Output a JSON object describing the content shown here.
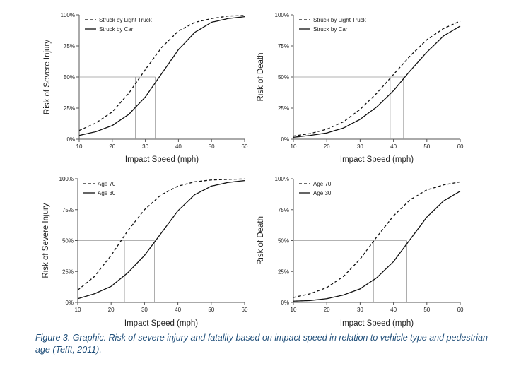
{
  "figure": {
    "caption": "Figure 3. Graphic. Risk of severe injury and fatality based on impact speed in relation to vehicle type and pedestrian age (Tefft, 2011)."
  },
  "chart_data": [
    {
      "type": "line",
      "title": "",
      "xlabel": "Impact Speed (mph)",
      "ylabel": "Risk of Severe Injury",
      "xlim": [
        10,
        60
      ],
      "ylim": [
        0,
        100
      ],
      "xticks": [
        "10",
        "20",
        "30",
        "40",
        "50",
        "60"
      ],
      "yticks": [
        "0%",
        "25%",
        "50%",
        "75%",
        "100%"
      ],
      "legend_position": "top-left",
      "grid": false,
      "reference_line_y": 50,
      "x": [
        10,
        15,
        20,
        25,
        30,
        35,
        40,
        45,
        50,
        55,
        60
      ],
      "series": [
        {
          "name": "Struck by Light Truck",
          "style": "dashed",
          "values": [
            7,
            13,
            22,
            37,
            56,
            74,
            87,
            94,
            97,
            99,
            99.5
          ],
          "x_at_50pct": 27
        },
        {
          "name": "Struck by Car",
          "style": "solid",
          "values": [
            3,
            6,
            11,
            20,
            34,
            53,
            72,
            86,
            94,
            97,
            98.5
          ],
          "x_at_50pct": 33
        }
      ]
    },
    {
      "type": "line",
      "title": "",
      "xlabel": "Impact Speed (mph)",
      "ylabel": "Risk of Death",
      "xlim": [
        10,
        60
      ],
      "ylim": [
        0,
        100
      ],
      "xticks": [
        "10",
        "20",
        "30",
        "40",
        "50",
        "60"
      ],
      "yticks": [
        "0%",
        "25%",
        "50%",
        "75%",
        "100%"
      ],
      "legend_position": "top-left",
      "grid": false,
      "reference_line_y": 50,
      "x": [
        10,
        15,
        20,
        25,
        30,
        35,
        40,
        45,
        50,
        55,
        60
      ],
      "series": [
        {
          "name": "Struck by Light Truck",
          "style": "dashed",
          "values": [
            2.5,
            4.5,
            8,
            14,
            24,
            37,
            52,
            67,
            80,
            89,
            95
          ],
          "x_at_50pct": 39
        },
        {
          "name": "Struck by Car",
          "style": "solid",
          "values": [
            1.5,
            3,
            5,
            9,
            16,
            26,
            39,
            55,
            70,
            83,
            91
          ],
          "x_at_50pct": 43
        }
      ]
    },
    {
      "type": "line",
      "title": "",
      "xlabel": "Impact Speed (mph)",
      "ylabel": "Risk of Severe Injury",
      "xlim": [
        10,
        60
      ],
      "ylim": [
        0,
        100
      ],
      "xticks": [
        "10",
        "20",
        "30",
        "40",
        "50",
        "60"
      ],
      "yticks": [
        "0%",
        "25%",
        "50%",
        "75%",
        "100%"
      ],
      "legend_position": "top-left",
      "grid": false,
      "reference_line_y": 50,
      "x": [
        10,
        15,
        20,
        25,
        30,
        35,
        40,
        45,
        50,
        55,
        60
      ],
      "series": [
        {
          "name": "Age 70",
          "style": "dashed",
          "values": [
            10,
            21,
            38,
            58,
            75,
            87,
            94,
            97.5,
            99,
            99.5,
            99.8
          ],
          "x_at_50pct": 24
        },
        {
          "name": "Age 30",
          "style": "solid",
          "values": [
            3,
            7,
            13,
            24,
            38,
            56,
            74,
            87,
            94,
            97,
            98.5
          ],
          "x_at_50pct": 33
        }
      ]
    },
    {
      "type": "line",
      "title": "",
      "xlabel": "Impact Speed (mph)",
      "ylabel": "Risk of Death",
      "xlim": [
        10,
        60
      ],
      "ylim": [
        0,
        100
      ],
      "xticks": [
        "10",
        "20",
        "30",
        "40",
        "50",
        "60"
      ],
      "yticks": [
        "0%",
        "25%",
        "50%",
        "75%",
        "100%"
      ],
      "legend_position": "top-left",
      "grid": false,
      "reference_line_y": 50,
      "x": [
        10,
        15,
        20,
        25,
        30,
        35,
        40,
        45,
        50,
        55,
        60
      ],
      "series": [
        {
          "name": "Age 70",
          "style": "dashed",
          "values": [
            4,
            7,
            12,
            21,
            35,
            53,
            70,
            83,
            91,
            95,
            97.5
          ],
          "x_at_50pct": 34
        },
        {
          "name": "Age 30",
          "style": "solid",
          "values": [
            1,
            1.5,
            3,
            6,
            11,
            20,
            33,
            51,
            69,
            82,
            90
          ],
          "x_at_50pct": 44
        }
      ]
    }
  ]
}
